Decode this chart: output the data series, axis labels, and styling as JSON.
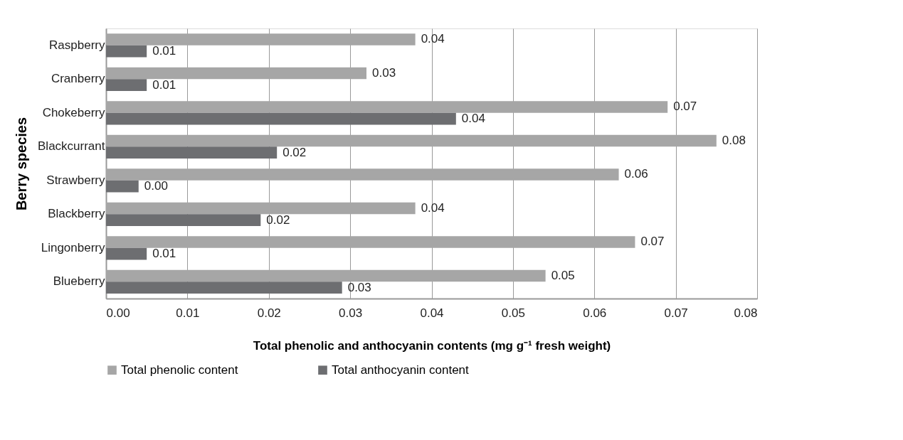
{
  "chart_data": {
    "type": "bar",
    "orientation": "horizontal",
    "xlabel": "Total phenolic and anthocyanin contents (mg g⁻¹ fresh weight)",
    "ylabel": "Berry species",
    "categories": [
      "Raspberry",
      "Cranberry",
      "Chokeberry",
      "Blackcurrant",
      "Strawberry",
      "Blackberry",
      "Lingonberry",
      "Blueberry"
    ],
    "series": [
      {
        "name": "Total phenolic content",
        "color": "#a6a6a6",
        "values": [
          0.038,
          0.032,
          0.069,
          0.075,
          0.063,
          0.038,
          0.065,
          0.054
        ],
        "value_labels": [
          "0.04",
          "0.03",
          "0.07",
          "0.08",
          "0.06",
          "0.04",
          "0.07",
          "0.05"
        ]
      },
      {
        "name": "Total anthocyanin content",
        "color": "#6d6e71",
        "values": [
          0.005,
          0.005,
          0.043,
          0.021,
          0.004,
          0.019,
          0.005,
          0.029
        ],
        "value_labels": [
          "0.01",
          "0.01",
          "0.04",
          "0.02",
          "0.00",
          "0.02",
          "0.01",
          "0.03"
        ]
      }
    ],
    "xlim": [
      0,
      0.08
    ],
    "xticks": [
      {
        "value": 0,
        "label": "0.00"
      },
      0.01,
      0.02,
      0.03,
      0.04,
      0.05,
      0.06,
      0.07,
      0.08
    ],
    "grid": "x",
    "legend": "bottom"
  }
}
